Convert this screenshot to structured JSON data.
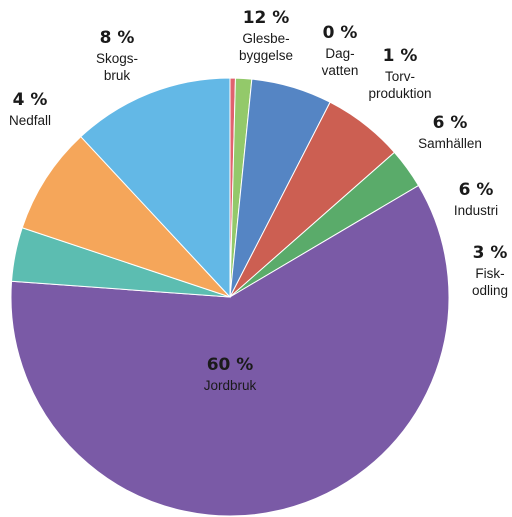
{
  "chart_data": {
    "type": "pie",
    "title": "",
    "start": "12 o'clock",
    "direction": "clockwise",
    "slices": [
      {
        "value": 0.4,
        "pct_label": "0 %",
        "label_lines": [
          "Dag-",
          "vatten"
        ],
        "color": "#e0626e"
      },
      {
        "value": 1.2,
        "pct_label": "1 %",
        "label_lines": [
          "Torv-",
          "produktion"
        ],
        "color": "#93c96a"
      },
      {
        "value": 6,
        "pct_label": "6 %",
        "label_lines": [
          "Samhällen"
        ],
        "color": "#5585c4"
      },
      {
        "value": 6,
        "pct_label": "6 %",
        "label_lines": [
          "Industri"
        ],
        "color": "#cc5f52"
      },
      {
        "value": 3,
        "pct_label": "3 %",
        "label_lines": [
          "Fisk-",
          "odling"
        ],
        "color": "#5aab6a"
      },
      {
        "value": 60,
        "pct_label": "60 %",
        "label_lines": [
          "Jordbruk"
        ],
        "color": "#7a5aa6"
      },
      {
        "value": 4,
        "pct_label": "4 %",
        "label_lines": [
          "Nedfall"
        ],
        "color": "#5cbdb1"
      },
      {
        "value": 8,
        "pct_label": "8 %",
        "label_lines": [
          "Skogs-",
          "bruk"
        ],
        "color": "#f5a65a"
      },
      {
        "value": 12,
        "pct_label": "12 %",
        "label_lines": [
          "Glesbe-",
          "byggelse"
        ],
        "color": "#63b8e6"
      }
    ]
  }
}
